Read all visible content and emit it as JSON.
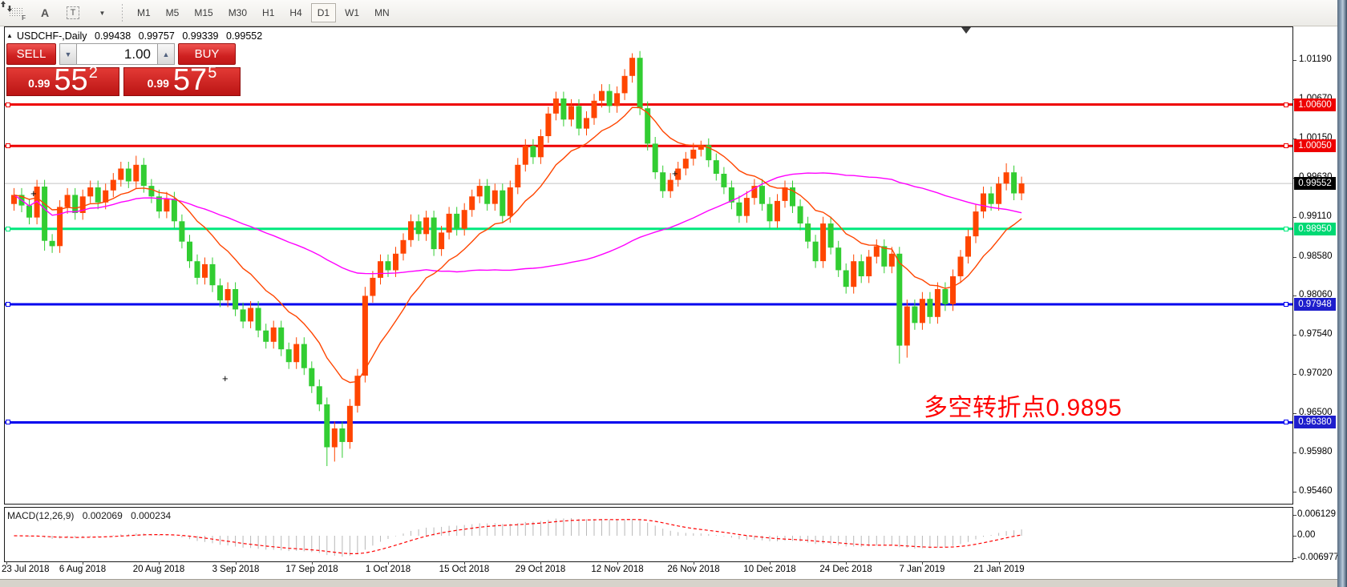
{
  "toolbar": {
    "icons": [
      {
        "name": "indicator-grid-icon",
        "label": "F"
      },
      {
        "name": "text-label-icon",
        "label": "A"
      },
      {
        "name": "text-box-icon",
        "label": "T"
      },
      {
        "name": "arrow-objects-icon",
        "caret": "▼"
      }
    ],
    "timeframes": [
      "M1",
      "M5",
      "M15",
      "M30",
      "H1",
      "H4",
      "D1",
      "W1",
      "MN"
    ],
    "active_timeframe": "D1"
  },
  "chart_header": {
    "collapse": "▲",
    "symbol_label": "USDCHF-,Daily",
    "open": "0.99438",
    "high": "0.99757",
    "low": "0.99339",
    "close": "0.99552"
  },
  "trade_panel": {
    "sell_label": "SELL",
    "buy_label": "BUY",
    "volume": "1.00",
    "spin_down": "▼",
    "spin_up": "▲",
    "sell_price": {
      "small": "0.99",
      "big": "55",
      "sup": "2"
    },
    "buy_price": {
      "small": "0.99",
      "big": "57",
      "sup": "5"
    }
  },
  "annotation": {
    "text": "多空转折点0.9895",
    "color": "#ff0000"
  },
  "price_axis": {
    "ticks": [
      "1.01190",
      "1.00670",
      "1.00150",
      "0.99630",
      "0.99110",
      "0.98580",
      "0.98060",
      "0.97540",
      "0.97020",
      "0.96500",
      "0.95980",
      "0.95460"
    ],
    "tick_values": [
      1.0119,
      1.0067,
      1.0015,
      0.9963,
      0.9911,
      0.9858,
      0.9806,
      0.9754,
      0.9702,
      0.965,
      0.9598,
      0.9546
    ]
  },
  "hlines": [
    {
      "price": 1.006,
      "label": "1.00600",
      "color": "#ee0000",
      "badge": "#ee0000"
    },
    {
      "price": 1.0005,
      "label": "1.00050",
      "color": "#ee0000",
      "badge": "#ee0000"
    },
    {
      "price": 0.9895,
      "label": "0.98950",
      "color": "#00e87d",
      "badge": "#00d974"
    },
    {
      "price": 0.97948,
      "label": "0.97948",
      "color": "#0000ee",
      "badge": "#1e1ecc"
    },
    {
      "price": 0.9638,
      "label": "0.96380",
      "color": "#0000ee",
      "badge": "#1e1ecc"
    }
  ],
  "current_price": {
    "value": 0.99552,
    "label": "0.99552",
    "line_color": "#c4c4c4",
    "badge": "#000000"
  },
  "macd_panel": {
    "label": "MACD(12,26,9)",
    "value_main": "0.002069",
    "value_signal": "0.000234",
    "axis_labels": [
      "0.006129",
      "0.00",
      "-0.006977"
    ],
    "histogram_color": "#b8b8b8",
    "signal_color": "#ff0000"
  },
  "date_axis": [
    "23 Jul 2018",
    "6 Aug 2018",
    "20 Aug 2018",
    "3 Sep 2018",
    "17 Sep 2018",
    "1 Oct 2018",
    "15 Oct 2018",
    "29 Oct 2018",
    "12 Nov 2018",
    "26 Nov 2018",
    "10 Dec 2018",
    "24 Dec 2018",
    "7 Jan 2019",
    "21 Jan 2019"
  ],
  "chart_data": {
    "type": "candlestick",
    "symbol": "USDCHF-",
    "timeframe": "Daily",
    "title": "USDCHF-,Daily",
    "ylim": [
      0.9529,
      1.0164
    ],
    "grid": false,
    "up_color": "#ff4500",
    "down_color": "#32cd32",
    "x_tick_dates": [
      "23 Jul 2018",
      "6 Aug 2018",
      "20 Aug 2018",
      "3 Sep 2018",
      "17 Sep 2018",
      "1 Oct 2018",
      "15 Oct 2018",
      "29 Oct 2018",
      "12 Nov 2018",
      "26 Nov 2018",
      "10 Dec 2018",
      "24 Dec 2018",
      "7 Jan 2019",
      "21 Jan 2019"
    ],
    "bars_per_tick": 10,
    "closes": [
      0.994,
      0.9926,
      0.991,
      0.9951,
      0.9879,
      0.9872,
      0.9924,
      0.994,
      0.9916,
      0.9938,
      0.995,
      0.993,
      0.9946,
      0.996,
      0.9975,
      0.9958,
      0.998,
      0.9952,
      0.9938,
      0.9918,
      0.9935,
      0.9905,
      0.9878,
      0.9852,
      0.983,
      0.9848,
      0.982,
      0.98,
      0.9815,
      0.9788,
      0.9772,
      0.979,
      0.976,
      0.9745,
      0.9764,
      0.9735,
      0.9718,
      0.9742,
      0.971,
      0.9686,
      0.9662,
      0.9605,
      0.963,
      0.9612,
      0.966,
      0.97,
      0.9806,
      0.983,
      0.9852,
      0.984,
      0.9862,
      0.988,
      0.9905,
      0.9888,
      0.991,
      0.9868,
      0.989,
      0.9915,
      0.9895,
      0.992,
      0.9938,
      0.9952,
      0.9928,
      0.9946,
      0.9912,
      0.995,
      0.998,
      1.0005,
      0.999,
      1.0018,
      1.0048,
      1.0068,
      1.004,
      1.0058,
      1.0028,
      1.0042,
      1.0065,
      1.0078,
      1.0058,
      1.0075,
      1.0098,
      1.0122,
      1.0055,
      1.0008,
      0.997,
      0.9945,
      0.996,
      0.9975,
      0.9988,
      1.0,
      1.0006,
      0.9986,
      0.9968,
      0.995,
      0.993,
      0.9912,
      0.9936,
      0.9952,
      0.9928,
      0.9905,
      0.9932,
      0.995,
      0.9925,
      0.9902,
      0.9878,
      0.9852,
      0.9902,
      0.987,
      0.984,
      0.9818,
      0.9852,
      0.9832,
      0.9858,
      0.9872,
      0.9845,
      0.9862,
      0.974,
      0.9792,
      0.977,
      0.9802,
      0.9778,
      0.9815,
      0.9795,
      0.9832,
      0.9858,
      0.9885,
      0.9918,
      0.9942,
      0.9928,
      0.9955,
      0.997,
      0.9942,
      0.99552
    ],
    "wick_extremes": {
      "4": {
        "l": 0.9866
      },
      "16": {
        "h": 0.9992
      },
      "41": {
        "l": 0.958
      },
      "42": {
        "l": 0.9586
      },
      "43": {
        "l": 0.9591
      },
      "46": {
        "h": 0.9818
      },
      "81": {
        "h": 1.0128
      },
      "90": {
        "h": 1.0012
      },
      "116": {
        "l": 0.9716
      },
      "117": {
        "l": 0.9724
      },
      "130": {
        "h": 0.9982
      }
    },
    "ma_fast": {
      "period": 13,
      "color": "#ff4500",
      "style": "solid"
    },
    "ma_slow": {
      "period": 55,
      "color": "#ff00ff",
      "style": "solid"
    },
    "macd": {
      "fast": 12,
      "slow": 26,
      "signal": 9,
      "current_main": 0.002069,
      "current_signal": 0.000234,
      "axis_max": 0.006129,
      "axis_min": -0.006977
    }
  }
}
